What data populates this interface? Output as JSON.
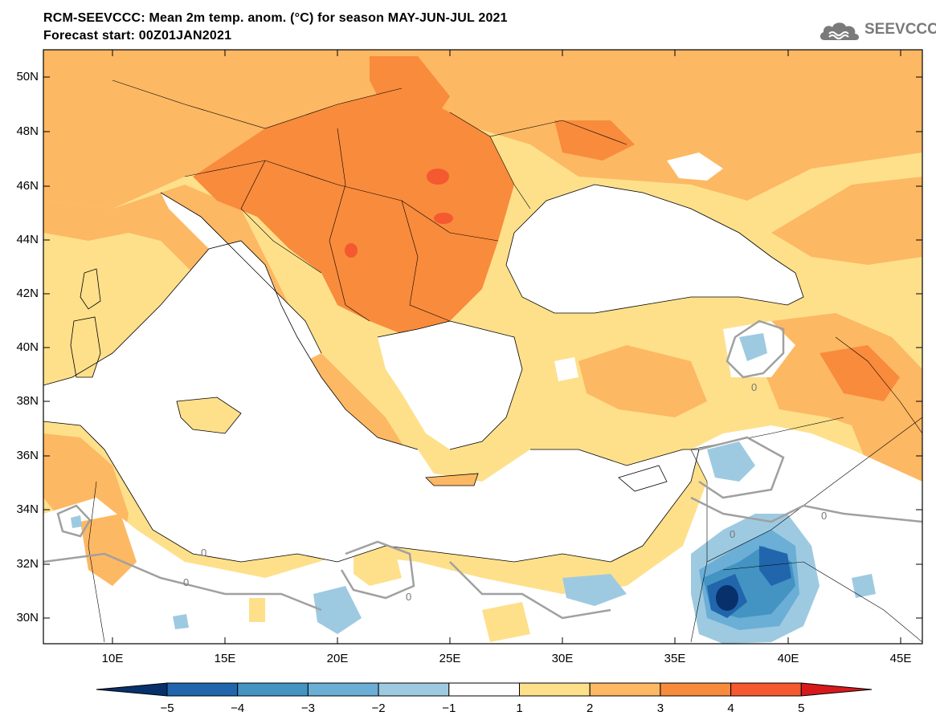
{
  "title_line1": "RCM-SEEVCCC: Mean 2m temp. anom. (°C) for season MAY-JUN-JUL 2021",
  "title_line2": "Forecast start: 00Z01JAN2021",
  "logo_text": "SEEVCCC",
  "lat_labels": [
    "50N",
    "48N",
    "46N",
    "44N",
    "42N",
    "40N",
    "38N",
    "36N",
    "34N",
    "32N",
    "30N"
  ],
  "lon_labels": [
    "10E",
    "15E",
    "20E",
    "25E",
    "30E",
    "35E",
    "40E",
    "45E"
  ],
  "contour_labels": [
    "0",
    "0",
    "0",
    "0",
    "0",
    "0"
  ],
  "colorbar": {
    "tick_labels": [
      "−5",
      "−4",
      "−3",
      "−2",
      "−1",
      "1",
      "2",
      "3",
      "4",
      "5"
    ],
    "colors": [
      "#08306b",
      "#2166ac",
      "#4393c3",
      "#6baed6",
      "#9ecae1",
      "#ffffff",
      "#fee08b",
      "#fdb863",
      "#f98b3c",
      "#f4592f",
      "#d7191c"
    ]
  },
  "colors": {
    "sea": "#ffffff",
    "anom_1_2": "#fee08b",
    "anom_2_3": "#fdb863",
    "anom_3_4": "#f98b3c",
    "anom_4_5": "#f4592f",
    "anom_m1_m2": "#9ecae1",
    "anom_m2_m3": "#6baed6",
    "anom_m3_m4": "#2166ac",
    "anom_m4_m5": "#08306b",
    "zero_contour": "#a0a0a0"
  }
}
